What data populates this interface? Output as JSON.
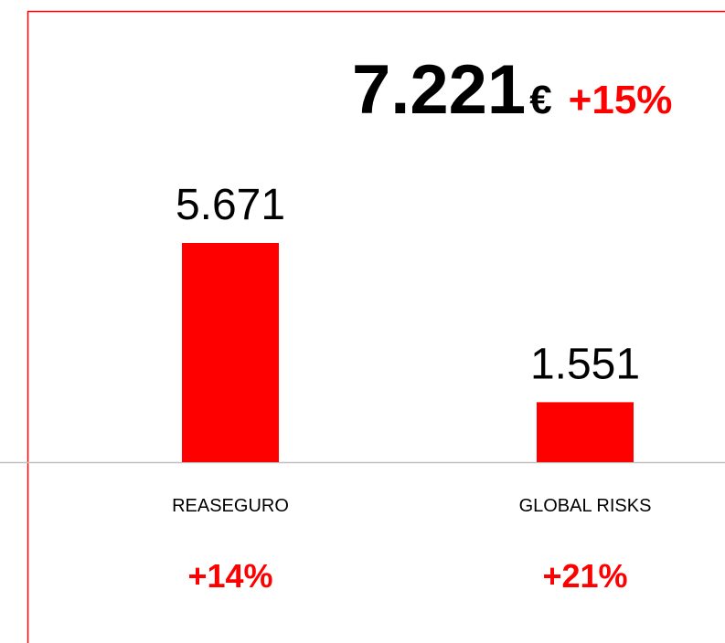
{
  "chart_data": {
    "type": "bar",
    "total": "7.221",
    "currency": "€",
    "total_change": "+15%",
    "categories": [
      "REASEGURO",
      "GLOBAL RISKS"
    ],
    "values": [
      5671,
      1551
    ],
    "value_labels": [
      "5.671",
      "1.551"
    ],
    "changes": [
      "+14%",
      "+21%"
    ],
    "color": "#ff0000"
  }
}
